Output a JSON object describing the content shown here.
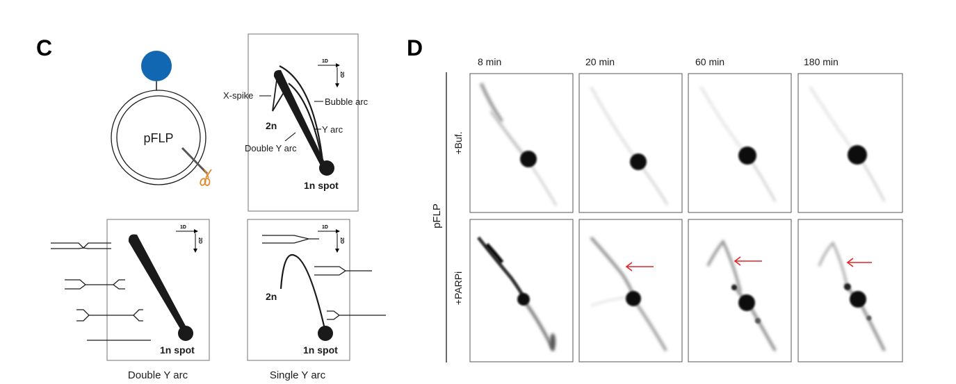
{
  "panel_c": {
    "label": "C",
    "plasmid_name": "pFLP",
    "colors": {
      "protein": "#1167B1",
      "scissors": "#E08A2C",
      "ink": "#1A1A1A",
      "frame": "#888888"
    },
    "icons": [
      "protein-circle",
      "scissors-icon"
    ],
    "axis_labels": {
      "first_dim": "1D",
      "second_dim": "2D"
    },
    "overview": {
      "labels": {
        "x_spike": "X-spike",
        "bubble_arc": "Bubble arc",
        "two_n": "2n",
        "y_arc": "Y arc",
        "double_y_arc": "Double Y arc",
        "one_n_spot": "1n spot"
      }
    },
    "double_y": {
      "one_n_spot": "1n spot",
      "caption": "Double Y arc"
    },
    "single_y": {
      "two_n": "2n",
      "one_n_spot": "1n spot",
      "caption": "Single Y arc"
    }
  },
  "panel_d": {
    "label": "D",
    "side_label": "pFLP",
    "time_points": [
      "8 min",
      "20 min",
      "60 min",
      "180 min"
    ],
    "conditions": [
      "+Buf.",
      "+PARPi"
    ],
    "arrow_color": "#E02424",
    "arrows_on": [
      "20 min",
      "60 min",
      "180 min"
    ]
  }
}
